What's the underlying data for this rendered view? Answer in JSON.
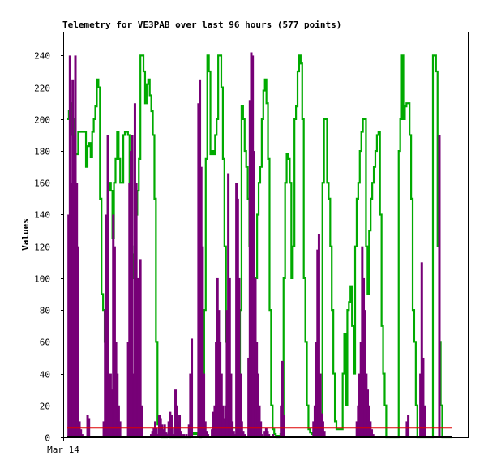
{
  "chart_data": {
    "type": "line",
    "title": "Telemetry for VE3PAB over last 96 hours (577 points)",
    "ylabel": "Values",
    "xlabel": "",
    "x_tick_labels": [
      "Mar 14"
    ],
    "ylim": [
      0,
      255
    ],
    "y_ticks": [
      0,
      20,
      40,
      60,
      80,
      100,
      120,
      140,
      160,
      180,
      200,
      220,
      240
    ],
    "grid": false,
    "legend": "none",
    "series": [
      {
        "color": "#00aa00",
        "style": "step",
        "values": [
          200,
          205,
          210,
          190,
          200,
          178,
          178,
          192,
          192,
          192,
          192,
          192,
          170,
          183,
          185,
          176,
          192,
          200,
          208,
          225,
          220,
          150,
          90,
          80,
          60,
          120,
          155,
          160,
          155,
          125,
          160,
          175,
          192,
          175,
          160,
          160,
          190,
          192,
          192,
          190,
          160,
          120,
          100,
          115,
          140,
          155,
          175,
          240,
          240,
          230,
          210,
          222,
          225,
          215,
          205,
          190,
          150,
          60,
          8,
          2,
          1,
          0,
          2,
          0,
          1,
          2,
          0,
          1,
          0,
          0,
          0,
          1,
          0,
          0,
          0,
          0,
          0,
          0,
          0,
          1,
          2,
          3,
          2,
          3,
          1,
          0,
          1,
          2,
          80,
          175,
          240,
          230,
          178,
          180,
          178,
          190,
          200,
          240,
          240,
          220,
          175,
          120,
          60,
          30,
          10,
          6,
          6,
          6,
          6,
          6,
          20,
          80,
          208,
          200,
          180,
          170,
          150,
          120,
          60,
          20,
          60,
          100,
          140,
          160,
          170,
          200,
          218,
          225,
          210,
          175,
          80,
          20,
          5,
          2,
          1,
          0,
          1,
          2,
          5,
          100,
          160,
          178,
          175,
          160,
          100,
          120,
          200,
          208,
          230,
          240,
          235,
          200,
          100,
          60,
          20,
          5,
          3,
          2,
          3,
          2,
          1,
          2,
          1,
          2,
          160,
          200,
          200,
          160,
          150,
          120,
          80,
          40,
          10,
          5,
          5,
          5,
          5,
          40,
          65,
          20,
          80,
          85,
          95,
          70,
          40,
          120,
          150,
          160,
          180,
          192,
          200,
          200,
          120,
          90,
          130,
          150,
          160,
          170,
          180,
          190,
          192,
          140,
          70,
          40,
          20,
          0,
          0,
          0,
          0,
          0,
          0,
          0,
          0,
          180,
          200,
          240,
          200,
          208,
          210,
          210,
          190,
          150,
          80,
          60,
          20,
          0,
          0,
          0,
          0,
          0,
          0,
          0,
          0,
          0,
          0,
          240,
          240,
          230,
          120,
          60,
          20,
          0,
          0,
          0,
          0,
          0,
          0,
          0
        ]
      },
      {
        "color": "#770077",
        "style": "bars",
        "values": [
          0,
          140,
          240,
          160,
          225,
          190,
          240,
          160,
          120,
          10,
          5,
          2,
          0,
          0,
          0,
          14,
          12,
          0,
          0,
          0,
          0,
          0,
          0,
          0,
          0,
          0,
          0,
          10,
          80,
          140,
          190,
          0,
          40,
          30,
          140,
          120,
          60,
          40,
          20,
          10,
          0,
          0,
          0,
          0,
          0,
          60,
          160,
          180,
          190,
          40,
          210,
          160,
          100,
          60,
          112,
          20,
          0,
          0,
          0,
          0,
          0,
          0,
          2,
          4,
          6,
          10,
          6,
          2,
          14,
          12,
          8,
          5,
          8,
          3,
          2,
          10,
          16,
          14,
          6,
          2,
          30,
          20,
          10,
          14,
          4,
          0,
          2,
          0,
          2,
          0,
          8,
          40,
          62,
          0,
          0,
          0,
          0,
          210,
          225,
          170,
          120,
          40,
          10,
          4,
          2,
          0,
          0,
          5,
          16,
          20,
          60,
          100,
          80,
          60,
          40,
          20,
          12,
          20,
          80,
          166,
          100,
          40,
          10,
          4,
          2,
          160,
          150,
          100,
          40,
          10,
          4,
          2,
          0,
          0,
          50,
          212,
          242,
          240,
          180,
          100,
          60,
          40,
          20,
          10,
          2,
          0,
          4,
          6,
          4,
          2,
          0,
          0,
          2,
          0,
          0,
          0,
          0,
          0,
          20,
          48,
          14,
          0,
          0,
          0,
          0,
          0,
          0,
          0,
          0,
          0,
          0,
          0,
          0,
          0,
          0,
          0,
          0,
          0,
          0,
          0,
          0,
          0,
          10,
          20,
          60,
          118,
          128,
          40,
          15,
          10,
          4,
          0,
          0,
          0,
          0,
          0,
          0,
          0,
          0,
          0,
          0,
          0,
          0,
          0,
          0,
          0,
          0,
          0,
          0,
          0,
          0,
          0,
          0,
          0,
          10,
          20,
          40,
          60,
          120,
          100,
          80,
          40,
          30,
          20,
          10,
          5,
          2,
          0,
          0,
          0,
          0,
          0,
          0,
          0,
          0,
          0,
          0,
          0,
          0,
          0,
          0,
          0,
          0,
          0,
          0,
          0,
          0,
          0,
          0,
          0,
          0,
          10,
          14,
          0,
          0,
          0,
          0,
          0,
          0,
          0,
          0,
          40,
          110,
          50,
          20,
          0,
          0,
          0,
          0,
          0,
          0,
          0,
          0,
          0,
          0,
          190,
          0,
          0,
          0,
          0,
          0,
          0,
          0,
          0,
          0
        ]
      },
      {
        "color": "#dd0000",
        "style": "line",
        "values": [
          6,
          6
        ]
      }
    ]
  }
}
